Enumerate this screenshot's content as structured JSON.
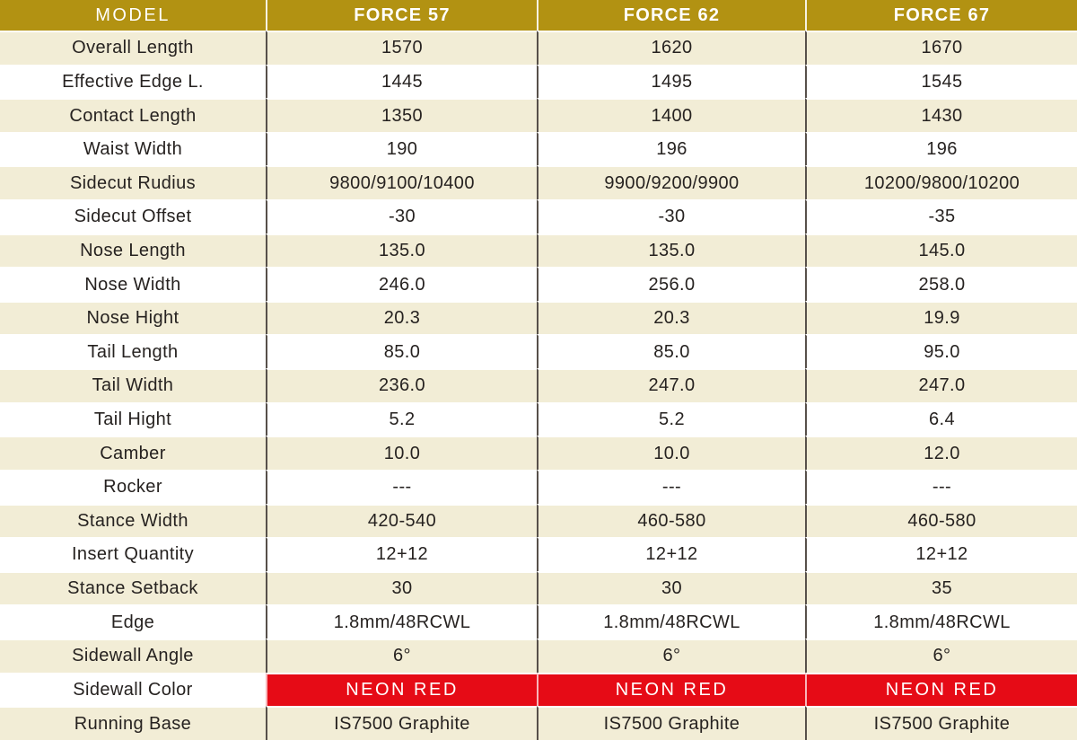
{
  "table": {
    "header": {
      "model_label": "MODEL",
      "columns": [
        "FORCE 57",
        "FORCE 62",
        "FORCE 67"
      ]
    },
    "rows": [
      {
        "label": "Overall Length",
        "values": [
          "1570",
          "1620",
          "1670"
        ]
      },
      {
        "label": "Effective Edge L.",
        "values": [
          "1445",
          "1495",
          "1545"
        ]
      },
      {
        "label": "Contact Length",
        "values": [
          "1350",
          "1400",
          "1430"
        ]
      },
      {
        "label": "Waist Width",
        "values": [
          "190",
          "196",
          "196"
        ]
      },
      {
        "label": "Sidecut Rudius",
        "values": [
          "9800/9100/10400",
          "9900/9200/9900",
          "10200/9800/10200"
        ]
      },
      {
        "label": "Sidecut Offset",
        "values": [
          "-30",
          "-30",
          "-35"
        ]
      },
      {
        "label": "Nose Length",
        "values": [
          "135.0",
          "135.0",
          "145.0"
        ]
      },
      {
        "label": "Nose Width",
        "values": [
          "246.0",
          "256.0",
          "258.0"
        ]
      },
      {
        "label": "Nose Hight",
        "values": [
          "20.3",
          "20.3",
          "19.9"
        ]
      },
      {
        "label": "Tail Length",
        "values": [
          "85.0",
          "85.0",
          "95.0"
        ]
      },
      {
        "label": "Tail Width",
        "values": [
          "236.0",
          "247.0",
          "247.0"
        ]
      },
      {
        "label": "Tail Hight",
        "values": [
          "5.2",
          "5.2",
          "6.4"
        ]
      },
      {
        "label": "Camber",
        "values": [
          "10.0",
          "10.0",
          "12.0"
        ]
      },
      {
        "label": "Rocker",
        "values": [
          "---",
          "---",
          "---"
        ]
      },
      {
        "label": "Stance Width",
        "values": [
          "420-540",
          "460-580",
          "460-580"
        ]
      },
      {
        "label": "Insert Quantity",
        "values": [
          "12+12",
          "12+12",
          "12+12"
        ]
      },
      {
        "label": "Stance Setback",
        "values": [
          "30",
          "30",
          "35"
        ]
      },
      {
        "label": "Edge",
        "values": [
          "1.8mm/48RCWL",
          "1.8mm/48RCWL",
          "1.8mm/48RCWL"
        ]
      },
      {
        "label": "Sidewall Angle",
        "values": [
          "6°",
          "6°",
          "6°"
        ]
      },
      {
        "label": "Sidewall Color",
        "values": [
          "NEON RED",
          "NEON RED",
          "NEON RED"
        ],
        "highlight": true
      },
      {
        "label": "Running Base",
        "values": [
          "IS7500 Graphite",
          "IS7500 Graphite",
          "IS7500 Graphite"
        ]
      }
    ],
    "colors": {
      "header_bg": "#b29212",
      "header_text": "#ffffff",
      "row_alt_bg": "#f2edd6",
      "row_bg": "#ffffff",
      "highlight_bg": "#e60b16",
      "highlight_text": "#ffffff",
      "text": "#262220",
      "divider": "#57504a"
    }
  },
  "chart_data": {
    "type": "table",
    "title": "FORCE model specifications",
    "columns": [
      "MODEL",
      "FORCE 57",
      "FORCE 62",
      "FORCE 67"
    ],
    "rows": [
      [
        "Overall Length",
        "1570",
        "1620",
        "1670"
      ],
      [
        "Effective Edge L.",
        "1445",
        "1495",
        "1545"
      ],
      [
        "Contact Length",
        "1350",
        "1400",
        "1430"
      ],
      [
        "Waist Width",
        "190",
        "196",
        "196"
      ],
      [
        "Sidecut Rudius",
        "9800/9100/10400",
        "9900/9200/9900",
        "10200/9800/10200"
      ],
      [
        "Sidecut Offset",
        "-30",
        "-30",
        "-35"
      ],
      [
        "Nose Length",
        "135.0",
        "135.0",
        "145.0"
      ],
      [
        "Nose Width",
        "246.0",
        "256.0",
        "258.0"
      ],
      [
        "Nose Hight",
        "20.3",
        "20.3",
        "19.9"
      ],
      [
        "Tail Length",
        "85.0",
        "85.0",
        "95.0"
      ],
      [
        "Tail Width",
        "236.0",
        "247.0",
        "247.0"
      ],
      [
        "Tail Hight",
        "5.2",
        "5.2",
        "6.4"
      ],
      [
        "Camber",
        "10.0",
        "10.0",
        "12.0"
      ],
      [
        "Rocker",
        "---",
        "---",
        "---"
      ],
      [
        "Stance Width",
        "420-540",
        "460-580",
        "460-580"
      ],
      [
        "Insert Quantity",
        "12+12",
        "12+12",
        "12+12"
      ],
      [
        "Stance Setback",
        "30",
        "30",
        "35"
      ],
      [
        "Edge",
        "1.8mm/48RCWL",
        "1.8mm/48RCWL",
        "1.8mm/48RCWL"
      ],
      [
        "Sidewall Angle",
        "6°",
        "6°",
        "6°"
      ],
      [
        "Sidewall Color",
        "NEON RED",
        "NEON RED",
        "NEON RED"
      ],
      [
        "Running Base",
        "IS7500 Graphite",
        "IS7500 Graphite",
        "IS7500 Graphite"
      ]
    ]
  }
}
